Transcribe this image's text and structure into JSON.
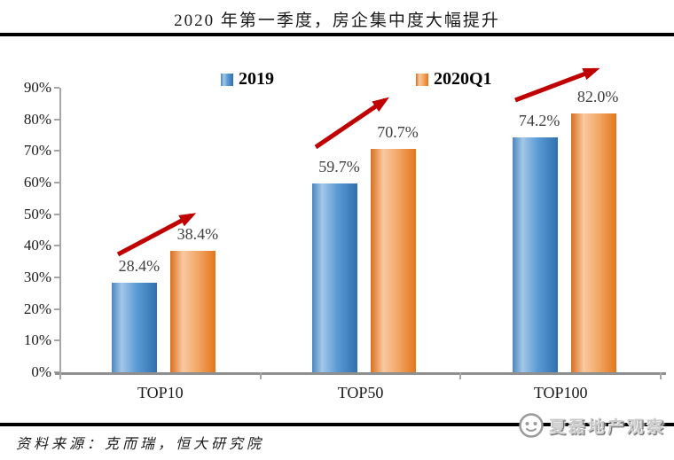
{
  "chart_data": {
    "type": "bar",
    "title": "2020 年第一季度，房企集中度大幅提升",
    "categories": [
      "TOP10",
      "TOP50",
      "TOP100"
    ],
    "series": [
      {
        "name": "2019",
        "color": "#5B9BD5",
        "values": [
          28.4,
          59.7,
          74.2
        ]
      },
      {
        "name": "2020Q1",
        "color": "#ED9B57",
        "values": [
          38.4,
          70.7,
          82.0
        ]
      }
    ],
    "data_labels": [
      [
        "28.4%",
        "59.7%",
        "74.2%"
      ],
      [
        "38.4%",
        "70.7%",
        "82.0%"
      ]
    ],
    "xlabel": "",
    "ylabel": "",
    "ylim": [
      0,
      90
    ],
    "ytick_step": 10,
    "ytick_labels": [
      "0%",
      "10%",
      "20%",
      "30%",
      "40%",
      "50%",
      "60%",
      "70%",
      "80%",
      "90%"
    ],
    "grid": false,
    "legend_position": "top",
    "annotations": {
      "type": "trend-arrows",
      "count": 3,
      "color": "#C00000"
    }
  },
  "footer": {
    "source": "资料来源：克而瑞，恒大研究院",
    "watermark": "夏磊地产观察"
  },
  "colors": {
    "axis": "#A6A6A6",
    "baseline": "#8F8F8F",
    "rule": "#000000",
    "arrow": "#C00000",
    "label_text": "#3F3F3F"
  }
}
